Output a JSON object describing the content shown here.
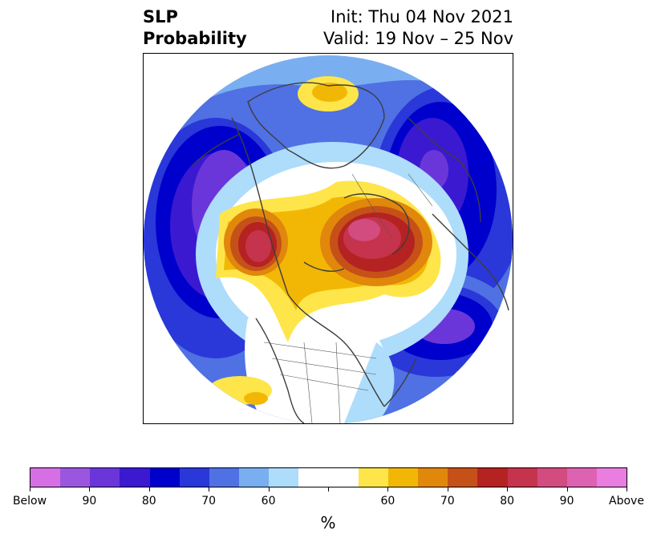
{
  "title": {
    "variable": "SLP",
    "product": "Probability",
    "init": "Init: Thu 04 Nov 2021",
    "valid": "Valid: 19 Nov – 25 Nov"
  },
  "colorbar": {
    "unit": "%",
    "colors": [
      "#d66fe4",
      "#9b56e0",
      "#6b36d9",
      "#3a19d1",
      "#0000cd",
      "#2a37d9",
      "#4f71e3",
      "#79aef0",
      "#aedcfb",
      "#ffffff",
      "#ffffff",
      "#fee54a",
      "#f2b705",
      "#e0870c",
      "#c55118",
      "#b52222",
      "#c5344c",
      "#d24c80",
      "#dd63b2",
      "#e97de0"
    ],
    "tick_labels": [
      "Below",
      "90",
      "80",
      "70",
      "60",
      "",
      "60",
      "70",
      "80",
      "90",
      "Above"
    ]
  }
}
